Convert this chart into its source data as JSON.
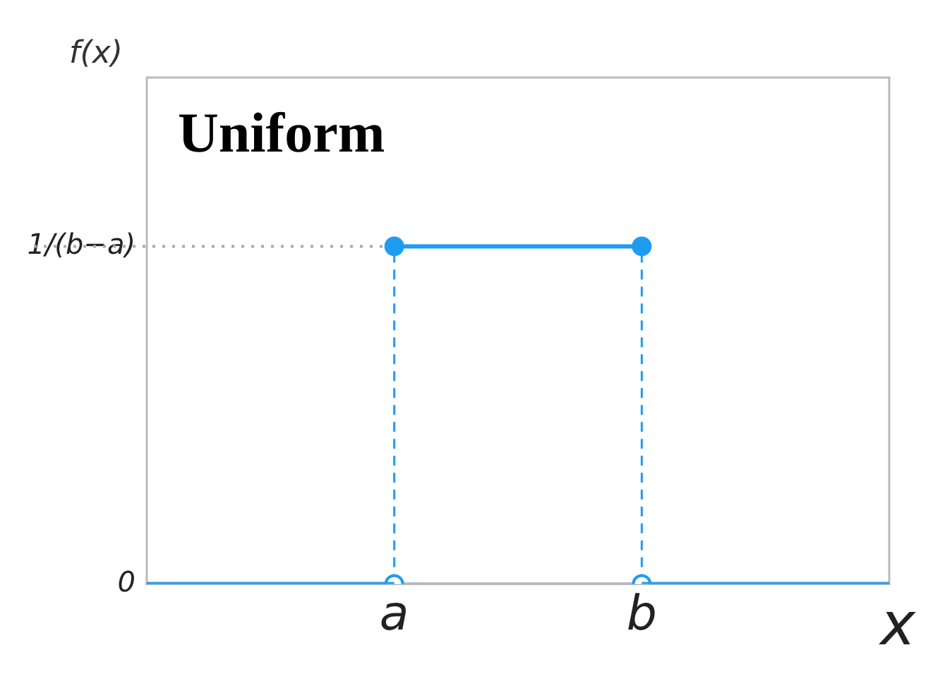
{
  "chart_data": {
    "type": "line",
    "title": "Uniform",
    "ylabel": "f(x)",
    "xlabel": "x",
    "ylim": [
      0,
      1.5
    ],
    "yticks": [
      0,
      {
        "value": 1,
        "label": "1/(b−a)"
      }
    ],
    "categories": [
      null,
      "a",
      "b",
      null
    ],
    "series": [
      {
        "color": "#1e9cf0",
        "values": [
          0,
          0,
          null,
          null
        ],
        "marker": "none"
      },
      {
        "color": "#1e9cf0",
        "values": [
          null,
          1,
          1,
          null
        ],
        "marker": "circle"
      },
      {
        "color": "#1e9cf0",
        "values": [
          null,
          null,
          0,
          0
        ],
        "marker": "none"
      },
      {
        "type": "scatter",
        "color": "#1e9cf0",
        "values": [
          null,
          0,
          0,
          null
        ],
        "marker": "circle"
      }
    ],
    "ref_lines": [
      {
        "axis": "y",
        "value": 1,
        "color": "#aaaaaa",
        "line_style": "dotted"
      },
      {
        "axis": "x",
        "value": "a",
        "color": "#1e9cf0",
        "line_style": "dashed"
      },
      {
        "axis": "x",
        "value": "b",
        "color": "#1e9cf0",
        "line_style": "dashed"
      }
    ],
    "grid": false,
    "legend": false
  }
}
